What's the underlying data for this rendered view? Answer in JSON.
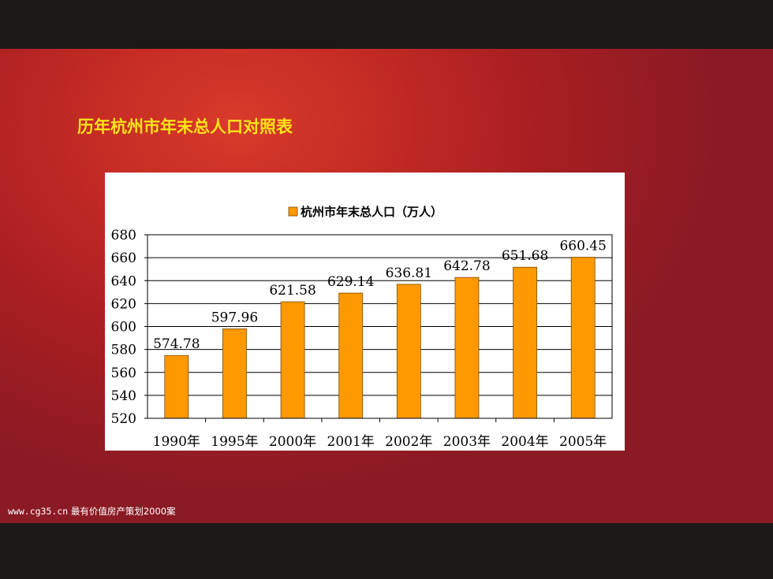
{
  "slide": {
    "title": "历年杭州市年末总人口对照表",
    "footer_url": "www.cg35.cn",
    "footer_text": "最有价值房产策划2000案"
  },
  "colors": {
    "bar": "#ff9900",
    "bar_stroke": "#7a4a00",
    "title": "#ffe21a",
    "slide_bg": "#c42b24"
  },
  "chart_data": {
    "type": "bar",
    "legend": "杭州市年末总人口（万人）",
    "legend_position": "top",
    "categories": [
      "1990年",
      "1995年",
      "2000年",
      "2001年",
      "2002年",
      "2003年",
      "2004年",
      "2005年"
    ],
    "series": [
      {
        "name": "杭州市年末总人口（万人）",
        "values": [
          574.78,
          597.96,
          621.58,
          629.14,
          636.81,
          642.78,
          651.68,
          660.45
        ],
        "labels": [
          "574.78",
          "597.96",
          "621.58",
          "629.14",
          "636.81",
          "642.78",
          "651.68",
          "660.45"
        ]
      }
    ],
    "ylim": [
      520,
      680
    ],
    "yticks": [
      520,
      540,
      560,
      580,
      600,
      620,
      640,
      660,
      680
    ],
    "grid": true
  }
}
